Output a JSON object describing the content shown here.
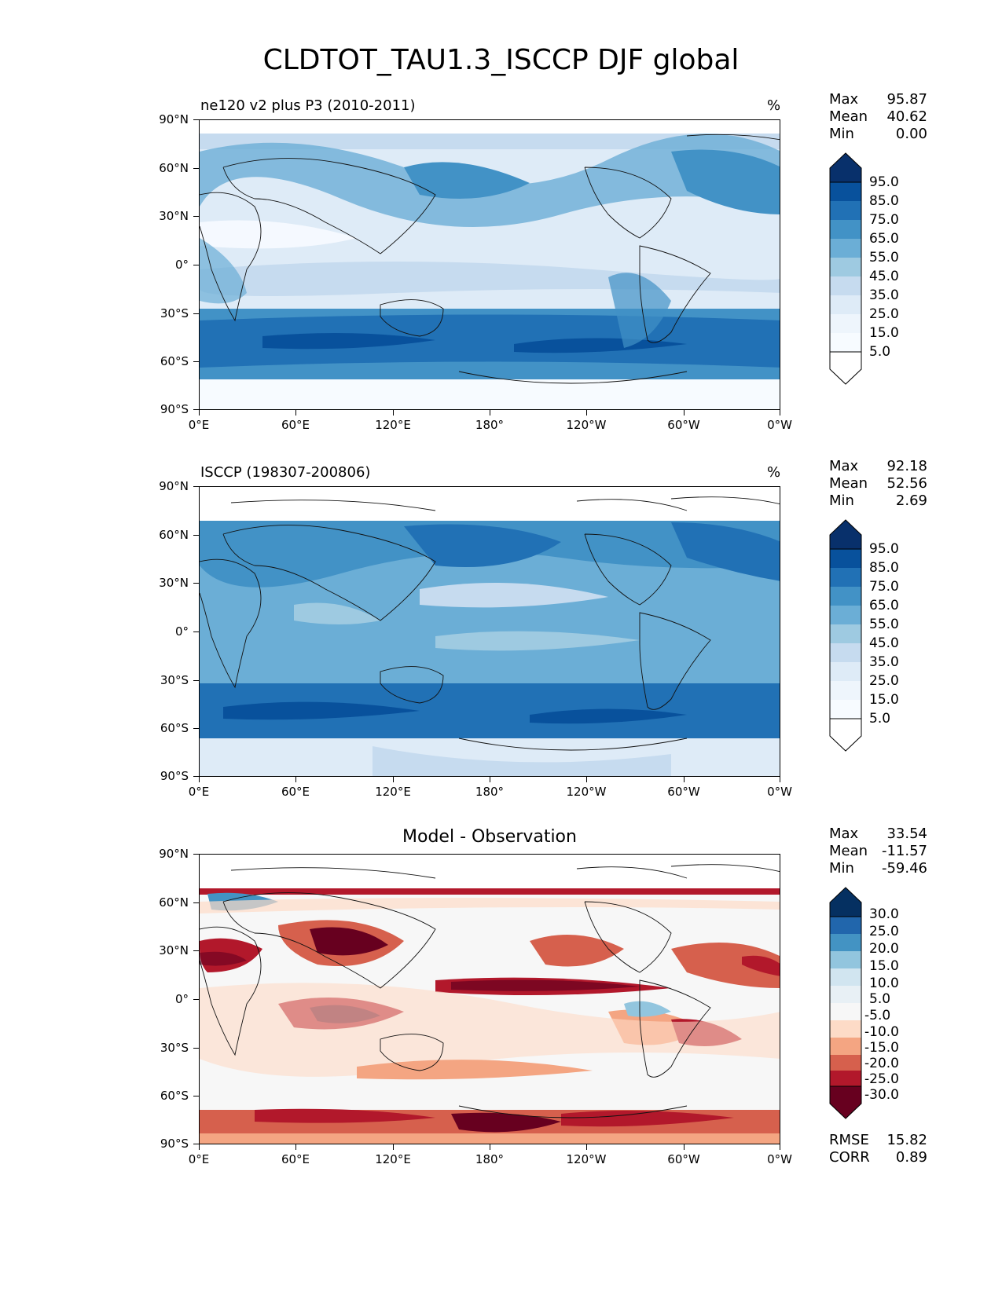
{
  "figure": {
    "title": "CLDTOT_TAU1.3_ISCCP DJF global"
  },
  "axes": {
    "y_ticks": [
      "90°N",
      "60°N",
      "30°N",
      "0°",
      "30°S",
      "60°S",
      "90°S"
    ],
    "x_ticks": [
      "0°E",
      "60°E",
      "120°E",
      "180°",
      "120°W",
      "60°W",
      "0°W"
    ]
  },
  "panels": [
    {
      "title_left": "ne120 v2 plus P3 (2010-2011)",
      "title_right": "%",
      "stats": {
        "max_label": "Max",
        "max": "95.87",
        "mean_label": "Mean",
        "mean": "40.62",
        "min_label": "Min",
        "min": "0.00"
      },
      "colorbar": {
        "labels": [
          "95.0",
          "85.0",
          "75.0",
          "65.0",
          "55.0",
          "45.0",
          "35.0",
          "25.0",
          "15.0",
          "5.0"
        ]
      }
    },
    {
      "title_left": "ISCCP (198307-200806)",
      "title_right": "%",
      "stats": {
        "max_label": "Max",
        "max": "92.18",
        "mean_label": "Mean",
        "mean": "52.56",
        "min_label": "Min",
        "min": "2.69"
      },
      "colorbar": {
        "labels": [
          "95.0",
          "85.0",
          "75.0",
          "65.0",
          "55.0",
          "45.0",
          "35.0",
          "25.0",
          "15.0",
          "5.0"
        ]
      }
    },
    {
      "title_center": "Model - Observation",
      "stats": {
        "max_label": "Max",
        "max": "33.54",
        "mean_label": "Mean",
        "mean": "-11.57",
        "min_label": "Min",
        "min": "-59.46"
      },
      "colorbar": {
        "labels": [
          "30.0",
          "25.0",
          "20.0",
          "15.0",
          "10.0",
          "5.0",
          "-5.0",
          "-10.0",
          "-15.0",
          "-20.0",
          "-25.0",
          "-30.0"
        ]
      },
      "metrics": {
        "rmse_label": "RMSE",
        "rmse": "15.82",
        "corr_label": "CORR",
        "corr": "0.89"
      }
    }
  ],
  "colors": {
    "blues": [
      "#f7fbff",
      "#deebf7",
      "#c6dbef",
      "#9ecae1",
      "#6baed6",
      "#4292c6",
      "#2171b5",
      "#08519c",
      "#08306b"
    ],
    "diff": [
      "#67001f",
      "#b2182b",
      "#d6604d",
      "#f4a582",
      "#fddbc7",
      "#f7f7f7",
      "#d1e5f0",
      "#92c5de",
      "#4393c3",
      "#2166ac",
      "#053061"
    ]
  }
}
